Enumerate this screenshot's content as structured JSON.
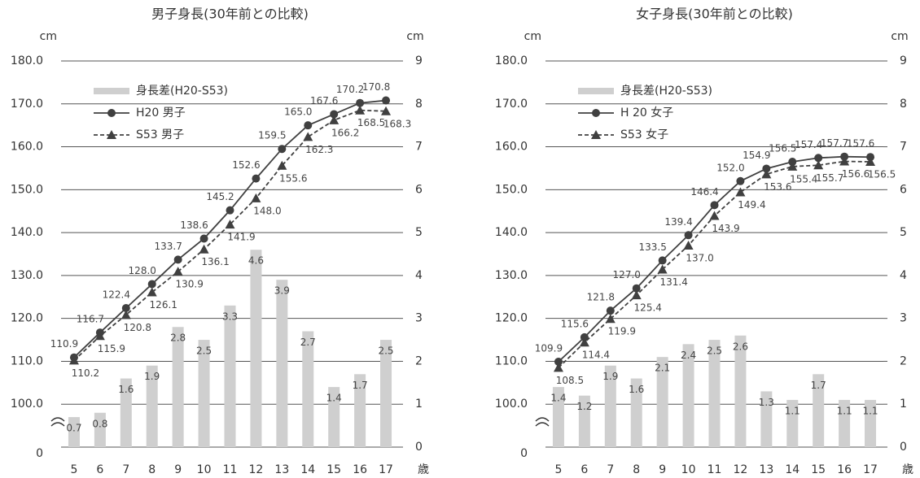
{
  "chart_data": [
    {
      "type": "combo",
      "title": "男子身長(30年前との比較)",
      "y_label": "cm",
      "y2_label": "cm",
      "x_label": "歳",
      "categories": [
        "5",
        "6",
        "7",
        "8",
        "9",
        "10",
        "11",
        "12",
        "13",
        "14",
        "15",
        "16",
        "17"
      ],
      "ylim": [
        0,
        180
      ],
      "y_break": [
        0,
        90
      ],
      "yticks": [
        0,
        {
          "value": 100,
          "label": "100.0"
        },
        {
          "value": 110,
          "label": "110.0"
        },
        {
          "value": 120,
          "label": "120.0"
        },
        {
          "value": 130,
          "label": "130.0"
        },
        {
          "value": 140,
          "label": "140.0"
        },
        {
          "value": 150,
          "label": "150.0"
        },
        {
          "value": 160,
          "label": "160.0"
        },
        {
          "value": 170,
          "label": "170.0"
        },
        {
          "value": 180,
          "label": "180.0"
        }
      ],
      "y2lim": [
        0,
        9
      ],
      "y2ticks": [
        0,
        1,
        2,
        3,
        4,
        5,
        6,
        7,
        8,
        9
      ],
      "grid": true,
      "legend": "upper left",
      "series": [
        {
          "name": "身長差(H20-S53)",
          "type": "bar",
          "axis": "y2",
          "color": "#cfcfcf",
          "values": [
            0.7,
            0.8,
            1.6,
            1.9,
            2.8,
            2.5,
            3.3,
            4.6,
            3.9,
            2.7,
            1.4,
            1.7,
            2.5
          ]
        },
        {
          "name": "H20 男子",
          "type": "line",
          "marker": "circle",
          "linestyle": "solid",
          "color": "#404040",
          "values": [
            110.9,
            116.7,
            122.4,
            128.0,
            133.7,
            138.6,
            145.2,
            152.6,
            159.5,
            165.0,
            167.6,
            170.2,
            170.8
          ],
          "value_labels": [
            "110.9",
            "116.7",
            "122.4",
            "128.0",
            "133.7",
            "138.6",
            "145.2",
            "152.6",
            "159.5",
            "165.0",
            "167.6",
            "170.2",
            "170.8"
          ]
        },
        {
          "name": "S53 男子",
          "type": "line",
          "marker": "triangle",
          "linestyle": "dashed",
          "color": "#404040",
          "values": [
            110.2,
            115.9,
            120.8,
            126.1,
            130.9,
            136.1,
            141.9,
            148.0,
            155.6,
            162.3,
            166.2,
            168.5,
            168.3
          ],
          "value_labels": [
            "110.2",
            "115.9",
            "120.8",
            "126.1",
            "130.9",
            "136.1",
            "141.9",
            "148.0",
            "155.6",
            "162.3",
            "166.2",
            "168.5",
            "168.3"
          ]
        }
      ]
    },
    {
      "type": "combo",
      "title": "女子身長(30年前との比較)",
      "y_label": "cm",
      "y2_label": "cm",
      "x_label": "歳",
      "categories": [
        "5",
        "6",
        "7",
        "8",
        "9",
        "10",
        "11",
        "12",
        "13",
        "14",
        "15",
        "16",
        "17"
      ],
      "ylim": [
        0,
        180
      ],
      "y_break": [
        0,
        90
      ],
      "yticks": [
        0,
        {
          "value": 100,
          "label": "100.0"
        },
        {
          "value": 110,
          "label": "110.0"
        },
        {
          "value": 120,
          "label": "120.0"
        },
        {
          "value": 130,
          "label": "130.0"
        },
        {
          "value": 140,
          "label": "140.0"
        },
        {
          "value": 150,
          "label": "150.0"
        },
        {
          "value": 160,
          "label": "160.0"
        },
        {
          "value": 170,
          "label": "170.0"
        },
        {
          "value": 180,
          "label": "180.0"
        }
      ],
      "y2lim": [
        0,
        9
      ],
      "y2ticks": [
        0,
        1,
        2,
        3,
        4,
        5,
        6,
        7,
        8,
        9
      ],
      "grid": true,
      "legend": "upper left",
      "series": [
        {
          "name": "身長差(H20-S53)",
          "type": "bar",
          "axis": "y2",
          "color": "#cfcfcf",
          "values": [
            1.4,
            1.2,
            1.9,
            1.6,
            2.1,
            2.4,
            2.5,
            2.6,
            1.3,
            1.1,
            1.7,
            1.1,
            1.1
          ]
        },
        {
          "name": "H 20 女子",
          "type": "line",
          "marker": "circle",
          "linestyle": "solid",
          "color": "#404040",
          "values": [
            109.9,
            115.6,
            121.8,
            127.0,
            133.5,
            139.4,
            146.4,
            152.0,
            154.9,
            156.5,
            157.4,
            157.7,
            157.6
          ],
          "value_labels": [
            "109.9",
            "115.6",
            "121.8",
            "127.0",
            "133.5",
            "139.4",
            "146.4",
            "152.0",
            "154.9",
            "156.5",
            "157.4",
            "157.7",
            "157.6"
          ]
        },
        {
          "name": "S53 女子",
          "type": "line",
          "marker": "triangle",
          "linestyle": "dashed",
          "color": "#404040",
          "values": [
            108.5,
            114.4,
            119.9,
            125.4,
            131.4,
            137.0,
            143.9,
            149.4,
            153.6,
            155.4,
            155.7,
            156.6,
            156.5
          ],
          "value_labels": [
            "108.5",
            "114.4",
            "119.9",
            "125.4",
            "131.4",
            "137.0",
            "143.9",
            "149.4",
            "153.6",
            "155.4",
            "155.7",
            "156.6",
            "156.5"
          ]
        }
      ]
    }
  ]
}
